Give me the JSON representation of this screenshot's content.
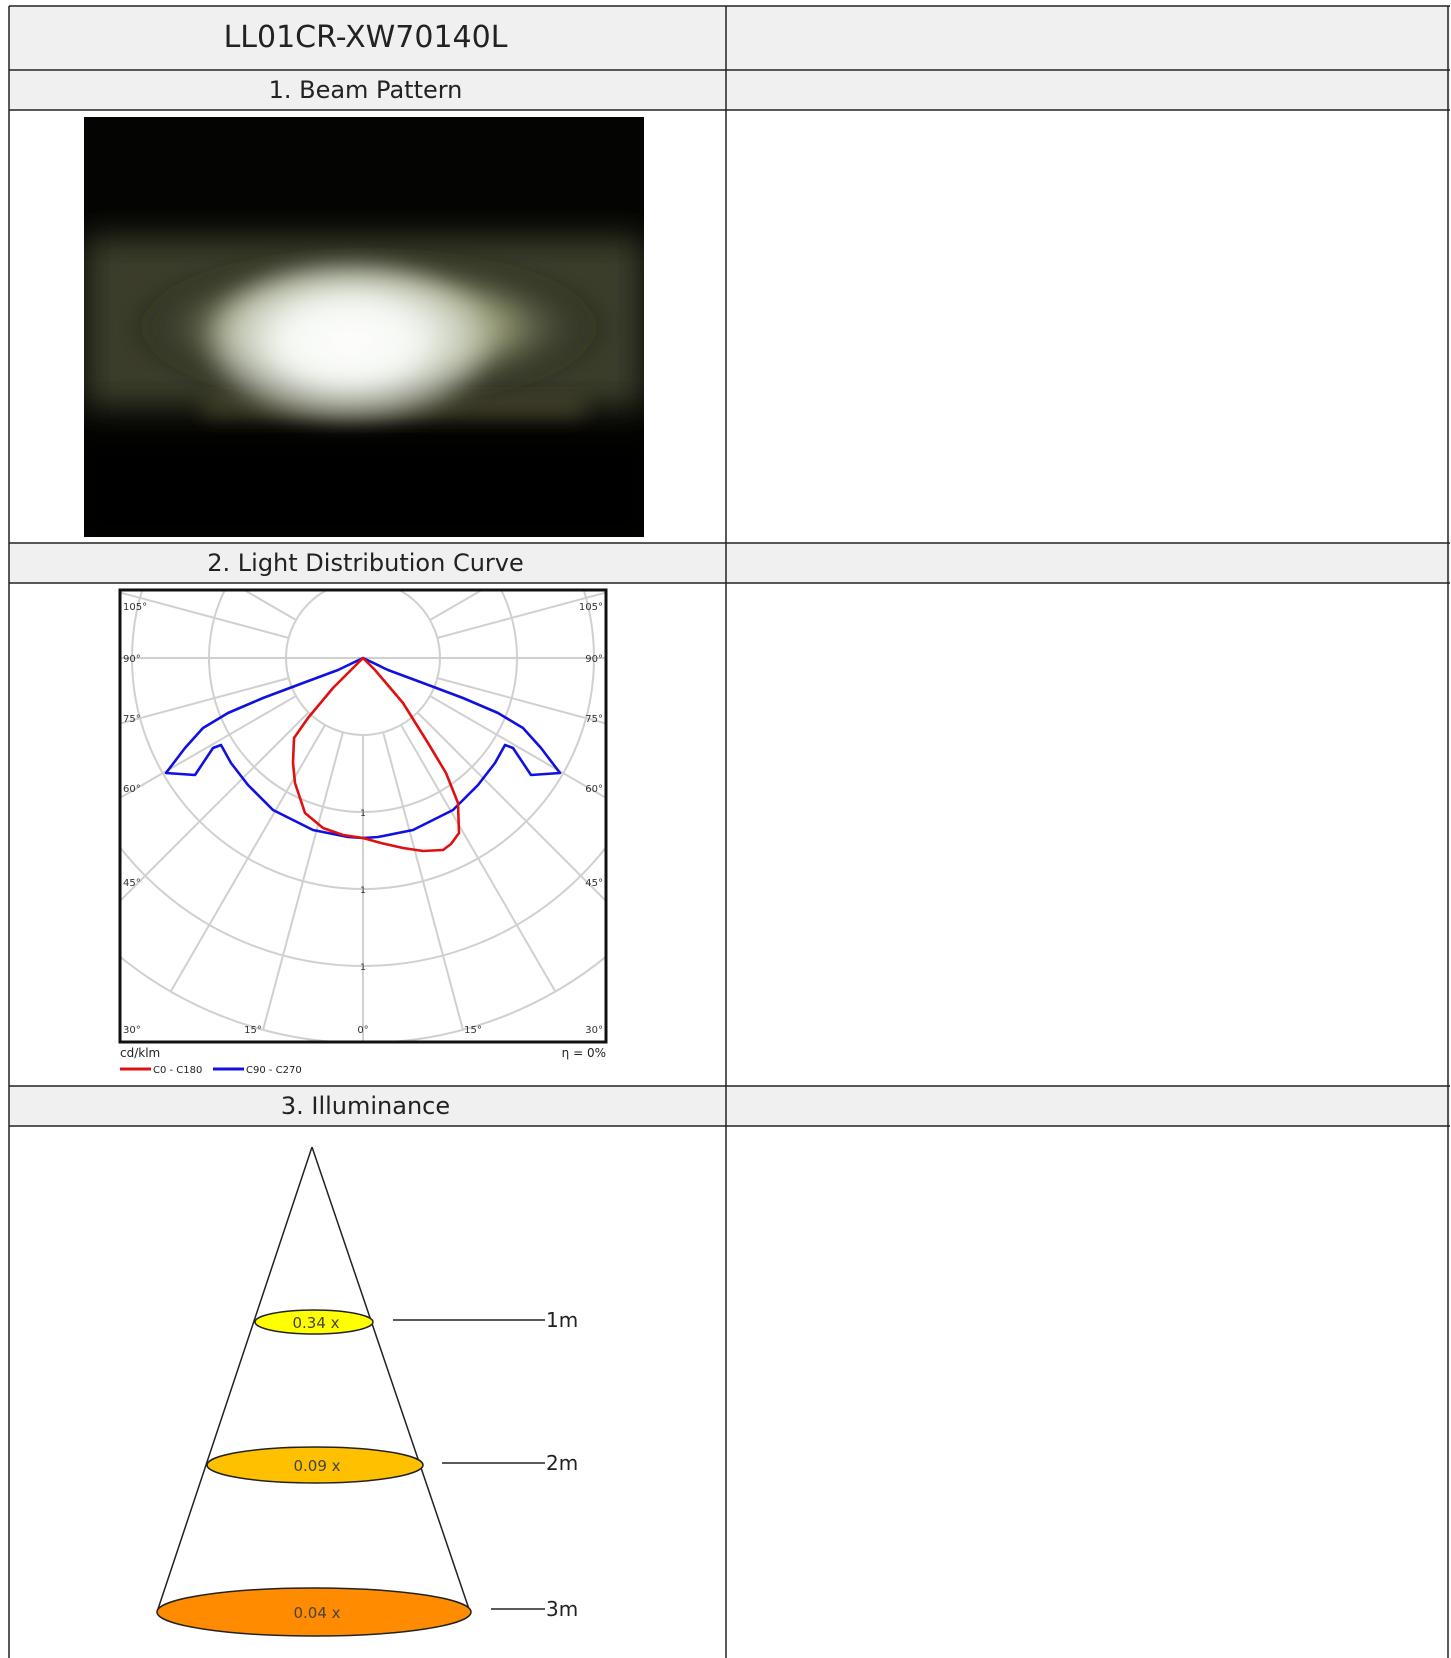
{
  "header": {
    "title": "LL01CR-XW70140L"
  },
  "sections": {
    "beam_pattern": "1. Beam Pattern",
    "light_distribution": "2. Light Distribution Curve",
    "illuminance": "3. Illuminance"
  },
  "polar_chart": {
    "angle_labels_left": [
      "105°",
      "90°",
      "75°",
      "60°",
      "45°",
      "30°"
    ],
    "angle_labels_right": [
      "105°",
      "90°",
      "75°",
      "60°",
      "45°",
      "30°"
    ],
    "bottom_labels": [
      "15°",
      "0°",
      "15°"
    ],
    "radial_labels": [
      "1",
      "1",
      "1"
    ],
    "unit": "cd/klm",
    "efficiency": "η = 0%",
    "legend": [
      {
        "name": "C0 - C180",
        "color": "#e01010"
      },
      {
        "name": "C90 - C270",
        "color": "#1010e0"
      }
    ]
  },
  "illuminance": {
    "levels": [
      {
        "value": "0.34 x",
        "distance": "1m",
        "color": "#ffff00"
      },
      {
        "value": "0.09 x",
        "distance": "2m",
        "color": "#ffc000"
      },
      {
        "value": "0.04 x",
        "distance": "3m",
        "color": "#ff8c00"
      }
    ]
  }
}
